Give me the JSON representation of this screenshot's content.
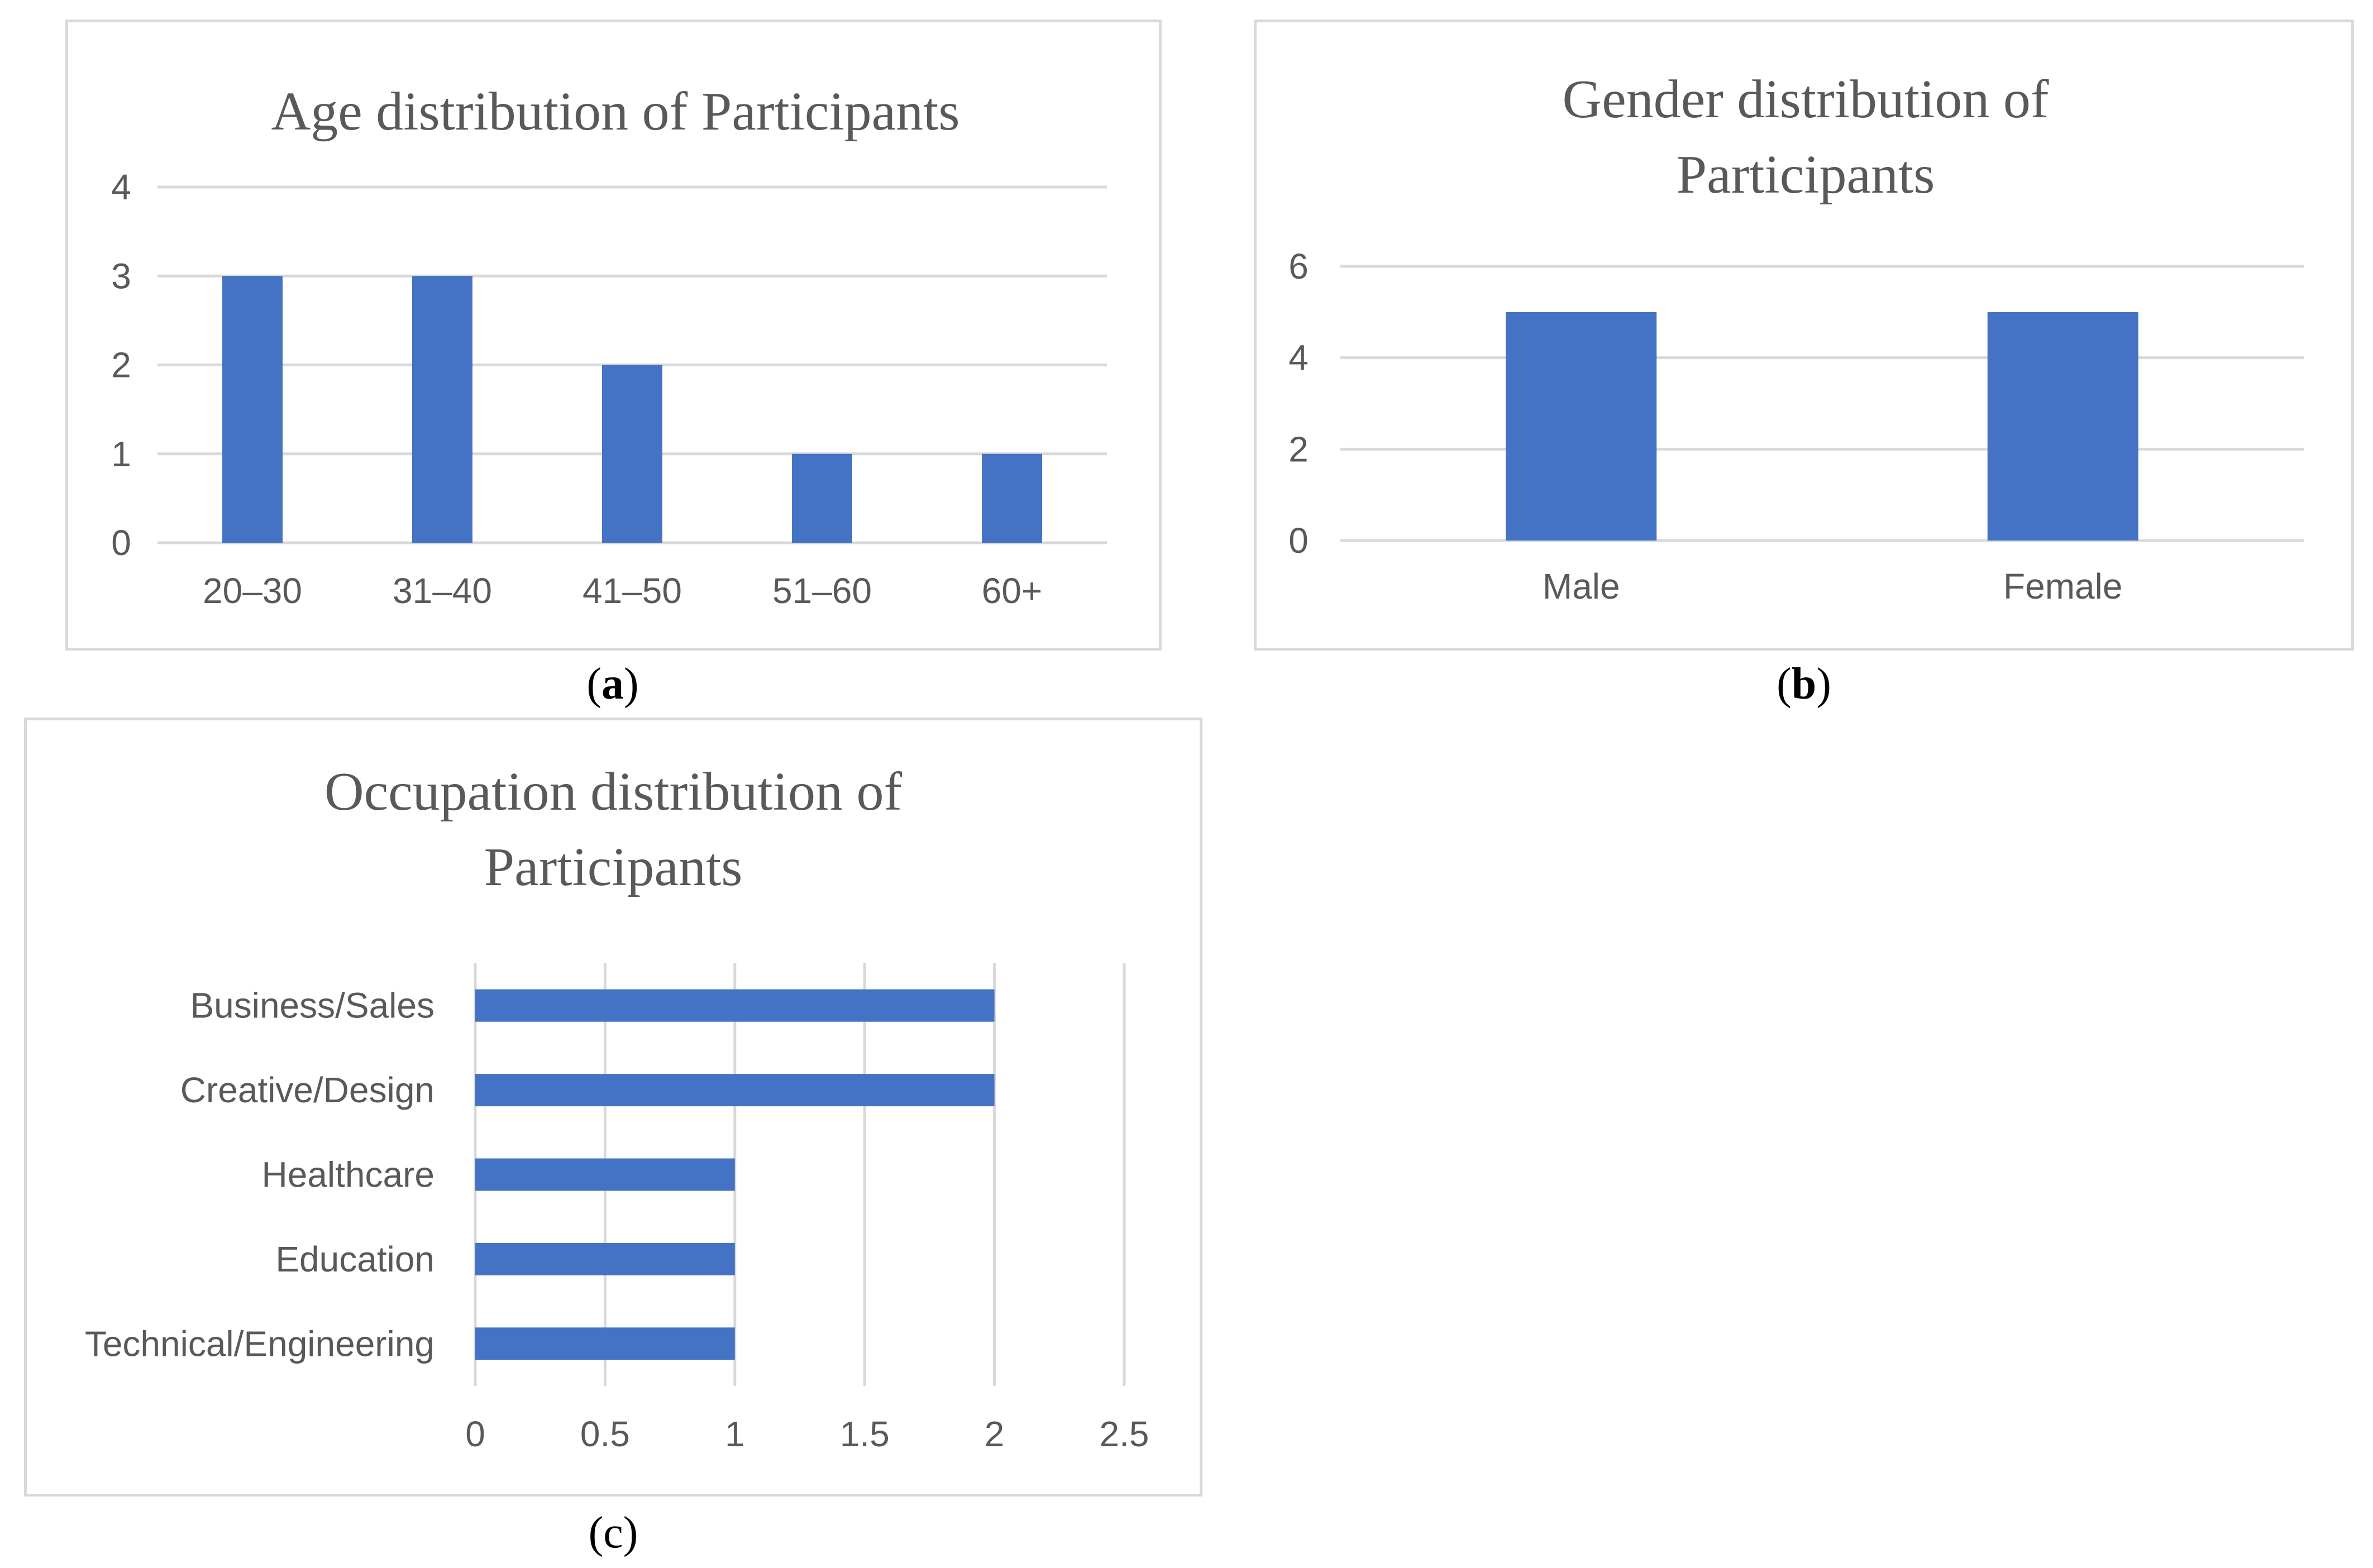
{
  "colors": {
    "bar": "#4472c4",
    "grid": "#d9d9d9",
    "title": "#595959",
    "tick": "#595959"
  },
  "captions": {
    "a": "a",
    "b": "b",
    "c": "c"
  },
  "chart_data": [
    {
      "id": "a",
      "type": "bar",
      "title": "Age distribution of Participants",
      "categories": [
        "20–30",
        "31–40",
        "41–50",
        "51–60",
        "60+"
      ],
      "values": [
        3,
        3,
        2,
        1,
        1
      ],
      "ylim": [
        0,
        4
      ],
      "yticks": [
        0,
        1,
        2,
        3,
        4
      ],
      "xlabel": "",
      "ylabel": "",
      "grid": true
    },
    {
      "id": "b",
      "type": "bar",
      "title_lines": [
        "Gender distribution of",
        "Participants"
      ],
      "categories": [
        "Male",
        "Female"
      ],
      "values": [
        5,
        5
      ],
      "ylim": [
        0,
        6
      ],
      "yticks": [
        0,
        2,
        4,
        6
      ],
      "xlabel": "",
      "ylabel": "",
      "grid": true
    },
    {
      "id": "c",
      "type": "bar",
      "orientation": "horizontal",
      "title_lines": [
        "Occupation distribution of",
        "Participants"
      ],
      "categories": [
        "Business/Sales",
        "Creative/Design",
        "Healthcare",
        "Education",
        "Technical/Engineering"
      ],
      "values": [
        2,
        2,
        1,
        1,
        1
      ],
      "xlim": [
        0,
        2.5
      ],
      "xticks": [
        "0",
        "0.5",
        "1",
        "1.5",
        "2",
        "2.5"
      ],
      "xlabel": "",
      "ylabel": "",
      "grid": true
    }
  ]
}
